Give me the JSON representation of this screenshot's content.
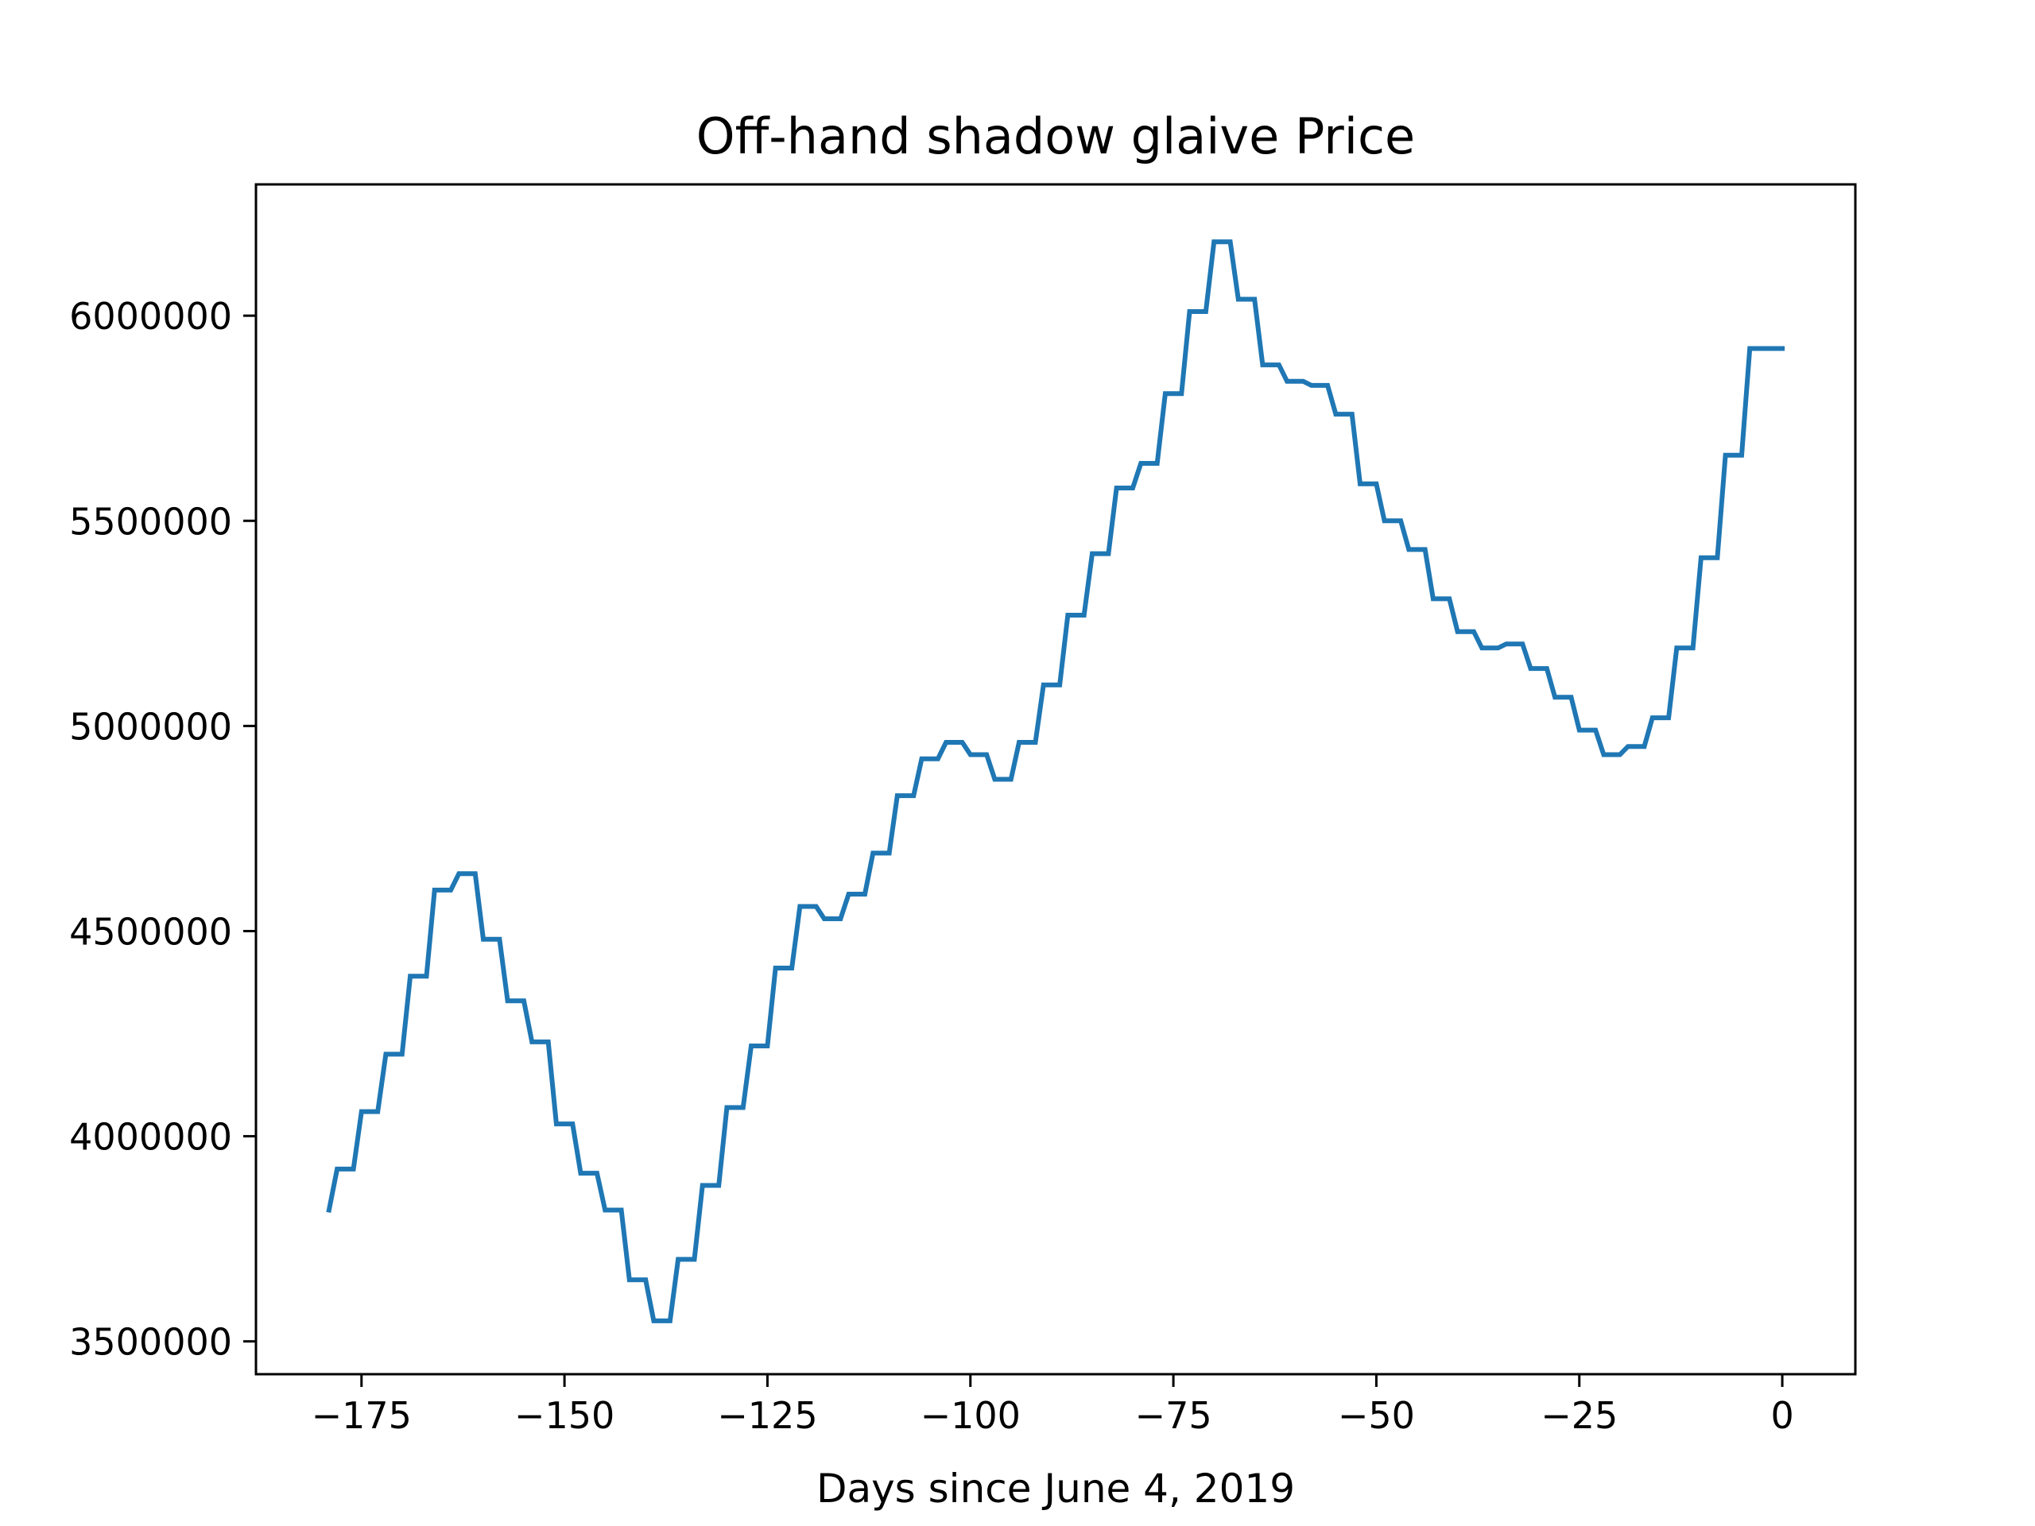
{
  "chart_data": {
    "type": "line",
    "title": "Off-hand shadow glaive Price",
    "xlabel": "Days since June 4, 2019",
    "ylabel": "",
    "xlim": [
      -188,
      9
    ],
    "ylim": [
      3420000,
      6320000
    ],
    "xticks": [
      -175,
      -150,
      -125,
      -100,
      -75,
      -50,
      -25,
      0
    ],
    "xtick_labels": [
      "−175",
      "−150",
      "−125",
      "−100",
      "−75",
      "−50",
      "−25",
      "0"
    ],
    "yticks": [
      3500000,
      4000000,
      4500000,
      5000000,
      5500000,
      6000000
    ],
    "ytick_labels": [
      "3500000",
      "4000000",
      "4500000",
      "5000000",
      "5500000",
      "6000000"
    ],
    "grid": false,
    "line_color": "#1f77b4",
    "series": [
      {
        "name": "",
        "x": [
          -179,
          -178,
          -176,
          -175,
          -173,
          -172,
          -170,
          -169,
          -167,
          -166,
          -164,
          -163,
          -161,
          -160,
          -158,
          -157,
          -155,
          -154,
          -152,
          -151,
          -149,
          -148,
          -146,
          -145,
          -143,
          -142,
          -140,
          -139,
          -137,
          -136,
          -134,
          -133,
          -131,
          -130,
          -128,
          -127,
          -125,
          -124,
          -122,
          -121,
          -119,
          -118,
          -116,
          -115,
          -113,
          -112,
          -110,
          -109,
          -107,
          -106,
          -104,
          -103,
          -101,
          -100,
          -98,
          -97,
          -95,
          -94,
          -92,
          -91,
          -89,
          -88,
          -86,
          -85,
          -83,
          -82,
          -80,
          -79,
          -77,
          -76,
          -74,
          -73,
          -71,
          -70,
          -68,
          -67,
          -65,
          -64,
          -62,
          -61,
          -59,
          -58,
          -56,
          -55,
          -53,
          -52,
          -50,
          -49,
          -47,
          -46,
          -44,
          -43,
          -41,
          -40,
          -38,
          -37,
          -35,
          -34,
          -32,
          -31,
          -29,
          -28,
          -26,
          -25,
          -23,
          -22,
          -20,
          -19,
          -17,
          -16,
          -14,
          -13,
          -11,
          -10,
          -8,
          -7,
          -5,
          -4,
          -2,
          -1,
          0
        ],
        "values": [
          3820000,
          3920000,
          3920000,
          4060000,
          4060000,
          4200000,
          4200000,
          4390000,
          4390000,
          4600000,
          4600000,
          4640000,
          4640000,
          4480000,
          4480000,
          4330000,
          4330000,
          4230000,
          4230000,
          4030000,
          4030000,
          3910000,
          3910000,
          3820000,
          3820000,
          3650000,
          3650000,
          3550000,
          3550000,
          3700000,
          3700000,
          3880000,
          3880000,
          4070000,
          4070000,
          4220000,
          4220000,
          4410000,
          4410000,
          4560000,
          4560000,
          4530000,
          4530000,
          4590000,
          4590000,
          4690000,
          4690000,
          4830000,
          4830000,
          4920000,
          4920000,
          4960000,
          4960000,
          4930000,
          4930000,
          4870000,
          4870000,
          4960000,
          4960000,
          5100000,
          5100000,
          5270000,
          5270000,
          5420000,
          5420000,
          5580000,
          5580000,
          5640000,
          5640000,
          5810000,
          5810000,
          6010000,
          6010000,
          6180000,
          6180000,
          6040000,
          6040000,
          5880000,
          5880000,
          5840000,
          5840000,
          5830000,
          5830000,
          5760000,
          5760000,
          5590000,
          5590000,
          5500000,
          5500000,
          5430000,
          5430000,
          5310000,
          5310000,
          5230000,
          5230000,
          5190000,
          5190000,
          5200000,
          5200000,
          5140000,
          5140000,
          5070000,
          5070000,
          4990000,
          4990000,
          4930000,
          4930000,
          4950000,
          4950000,
          5020000,
          5020000,
          5190000,
          5190000,
          5410000,
          5410000,
          5660000,
          5660000,
          5920000,
          5920000,
          5920000,
          5920000
        ]
      }
    ]
  }
}
